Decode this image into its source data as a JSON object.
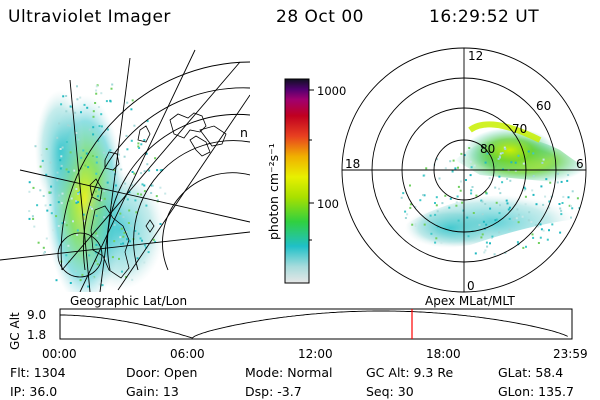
{
  "header": {
    "title": "Ultraviolet Imager",
    "date": "28 Oct 00",
    "time": "16:29:52 UT"
  },
  "colorbar": {
    "unit_label": "photon cm⁻²s⁻¹",
    "tick_1000": "1000",
    "tick_100": "100",
    "colors": [
      "#e6e6e6",
      "#80d8d8",
      "#18c0c8",
      "#30d040",
      "#a8e000",
      "#e8f000",
      "#f0b000",
      "#e84020",
      "#c00020",
      "#a00070",
      "#500070",
      "#101020"
    ]
  },
  "map_left": {
    "caption": "Geographic Lat/Lon",
    "projection_label": "n"
  },
  "polar_right": {
    "caption": "Apex MLat/MLT",
    "mlt_labels": {
      "top": "12",
      "left": "18",
      "right": "6",
      "bottom": "0"
    },
    "mlat_labels": [
      "60",
      "70",
      "80"
    ]
  },
  "timeline": {
    "ylabel": "GC Alt",
    "y_ticks": [
      "9.0",
      "1.8"
    ],
    "x_ticks": [
      "00:00",
      "06:00",
      "12:00",
      "18:00",
      "23:59"
    ],
    "current_time_hours": 16.5,
    "marker_color": "#ff0000"
  },
  "info": {
    "flt": "Flt:  1304",
    "ip": "IP:  36.0",
    "door": "Door:  Open",
    "gain": "Gain:  13",
    "mode": "Mode:  Normal",
    "dsp": "Dsp:      -3.7",
    "gcalt": "GC Alt:  9.3 Re",
    "seq": "Seq:  30",
    "glat": "GLat:   58.4",
    "glon": "GLon:  135.7"
  }
}
